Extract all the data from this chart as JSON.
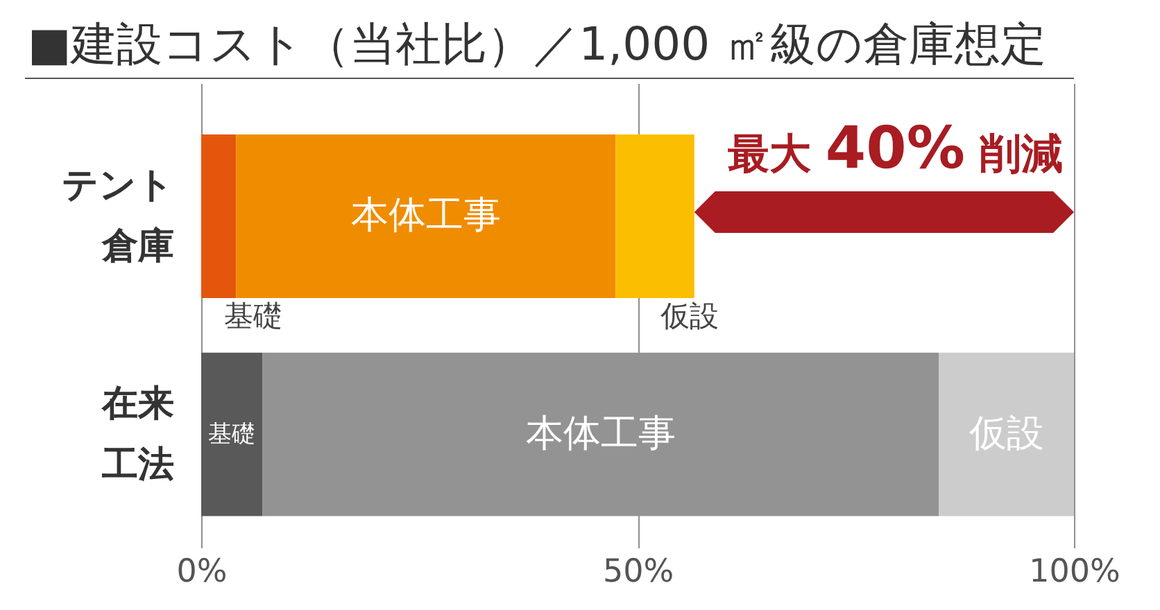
{
  "chart_data": {
    "type": "bar",
    "title": "■建設コスト（当社比）／1,000 ㎡級の倉庫想定",
    "orientation": "horizontal",
    "stacked": true,
    "categories": [
      "テント倉庫",
      "在来工法"
    ],
    "series": [
      {
        "name": "基礎",
        "colors": [
          "#e4560c",
          "#595959"
        ],
        "values": [
          4,
          7
        ]
      },
      {
        "name": "本体工事",
        "colors": [
          "#f08c00",
          "#939393"
        ],
        "values": [
          43.5,
          77.5
        ]
      },
      {
        "name": "仮設",
        "colors": [
          "#fbbe00",
          "#cccccc"
        ],
        "values": [
          9,
          15.5
        ]
      }
    ],
    "xlim": [
      0,
      100
    ],
    "xticks": [
      {
        "value": 0,
        "label": "0%"
      },
      {
        "value": 50,
        "label": "50%"
      },
      {
        "value": 100,
        "label": "100%"
      }
    ],
    "grid": "x",
    "annotations": [
      "最大 40% 削減"
    ]
  }
}
